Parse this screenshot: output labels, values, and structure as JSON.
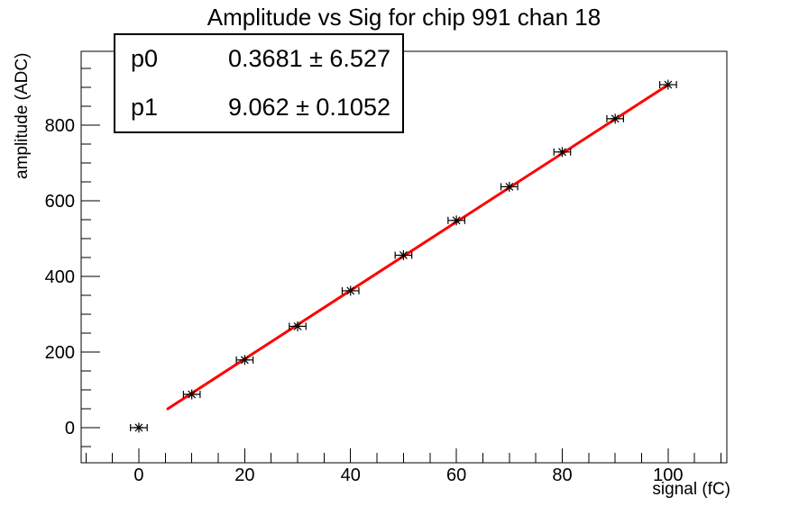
{
  "chart_data": {
    "type": "scatter",
    "title": "Amplitude vs Sig for chip 991 chan 18",
    "xlabel": "signal (fC)",
    "ylabel": "amplitude (ADC)",
    "xlim": [
      -10.9,
      111.1
    ],
    "ylim": [
      -92.9,
      995.2
    ],
    "grid": false,
    "legend": "none",
    "x_major_ticks": [
      0,
      20,
      40,
      60,
      80,
      100
    ],
    "x_tick_labels": [
      "0",
      "20",
      "40",
      "60",
      "80",
      "100"
    ],
    "x_minor_step": 5,
    "y_major_ticks": [
      0,
      200,
      400,
      600,
      800
    ],
    "y_tick_labels": [
      "0",
      "200",
      "400",
      "600",
      "800"
    ],
    "y_minor_step": 50,
    "points": {
      "x": [
        0,
        10,
        20,
        30,
        40,
        50,
        60,
        70,
        80,
        90,
        100
      ],
      "y": [
        0,
        88,
        179,
        268,
        362,
        456,
        548,
        637,
        729,
        817,
        907
      ],
      "xerr": 1.5,
      "marker": "asterisk"
    },
    "fit": {
      "type": "linear",
      "p0": 0.3681,
      "p1": 9.062,
      "draw_range": [
        5.45,
        100
      ],
      "color": "#ff0000"
    },
    "stats_box": {
      "rows": [
        {
          "name": "p0",
          "value": "0.3681 ± 6.527"
        },
        {
          "name": "p1",
          "value": "9.062 ± 0.1052"
        }
      ]
    },
    "colors": {
      "marker": "#000000",
      "axis": "#000000",
      "fit_line": "#ff0000",
      "background": "#ffffff"
    }
  }
}
